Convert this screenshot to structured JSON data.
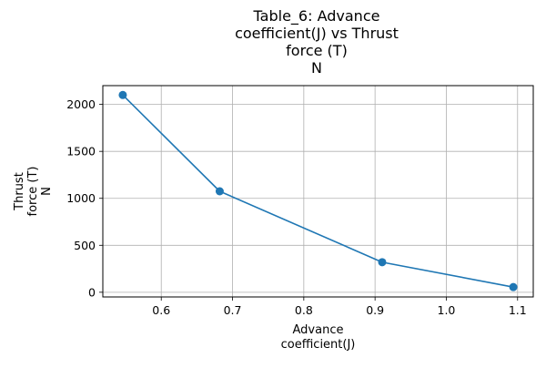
{
  "chart_data": {
    "type": "line",
    "title_lines": [
      "Table_6: Advance",
      "coefficient(J) vs Thrust",
      "force (T)",
      "N"
    ],
    "xlabel_lines": [
      "Advance",
      "coefficient(J)"
    ],
    "ylabel_lines": [
      "Thrust",
      "force (T)",
      "N"
    ],
    "x": [
      0.546,
      0.682,
      0.91,
      1.094
    ],
    "series": [
      {
        "values": [
          2100,
          1075,
          320,
          55
        ]
      }
    ],
    "xlim": [
      0.518,
      1.122
    ],
    "ylim": [
      -50,
      2200
    ],
    "xticks": [
      0.6,
      0.7,
      0.8,
      0.9,
      1.0,
      1.1
    ],
    "xtick_labels": [
      "0.6",
      "0.7",
      "0.8",
      "0.9",
      "1.0",
      "1.1"
    ],
    "yticks": [
      0,
      500,
      1000,
      1500,
      2000
    ],
    "ytick_labels": [
      "0",
      "500",
      "1000",
      "1500",
      "2000"
    ],
    "grid": true,
    "line_color": "#1f77b4",
    "marker": "circle"
  }
}
